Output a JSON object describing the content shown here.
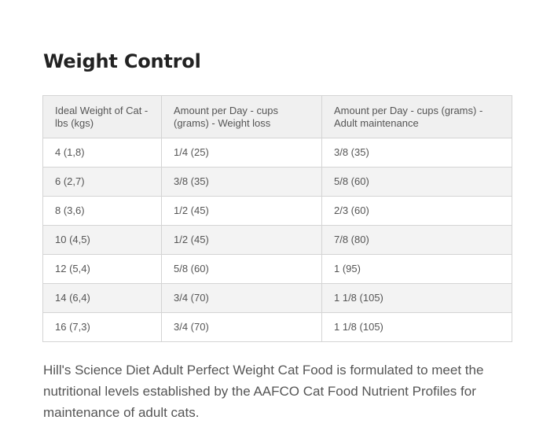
{
  "title": "Weight Control",
  "table": {
    "headers": [
      "Ideal Weight of Cat - lbs (kgs)",
      "Amount per Day - cups (grams) - Weight loss",
      "Amount per Day - cups (grams) - Adult maintenance"
    ],
    "rows": [
      [
        "4 (1,8)",
        "1/4 (25)",
        "3/8 (35)"
      ],
      [
        "6 (2,7)",
        "3/8 (35)",
        "5/8 (60)"
      ],
      [
        "8 (3,6)",
        "1/2 (45)",
        "2/3 (60)"
      ],
      [
        "10 (4,5)",
        "1/2 (45)",
        "7/8 (80)"
      ],
      [
        "12 (5,4)",
        "5/8 (60)",
        "1 (95)"
      ],
      [
        "14 (6,4)",
        "3/4 (70)",
        "1 1/8 (105)"
      ],
      [
        "16 (7,3)",
        "3/4 (70)",
        "1 1/8 (105)"
      ]
    ]
  },
  "description": "Hill's Science Diet Adult Perfect Weight Cat Food is formulated to meet the nutritional levels established by the AAFCO Cat Food Nutrient Profiles for maintenance of adult cats.",
  "colors": {
    "title": "#222222",
    "text": "#555555",
    "border": "#d4d4d4",
    "header_bg": "#f0f0f0",
    "stripe_bg": "#f3f3f3"
  }
}
